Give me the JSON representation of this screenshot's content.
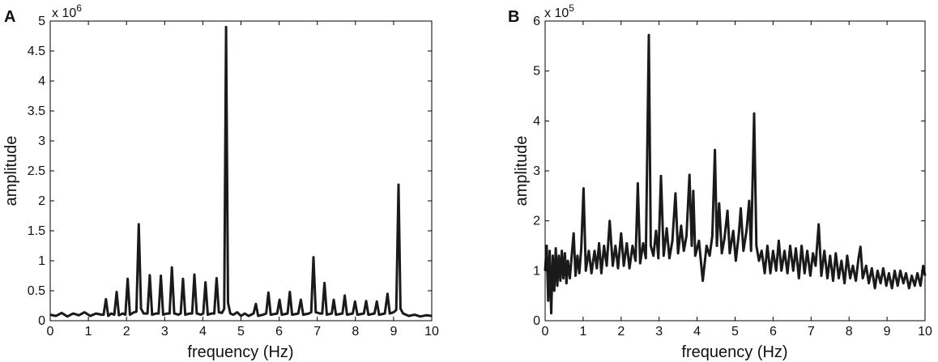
{
  "chart_data": [
    {
      "panel_label": "A",
      "type": "line",
      "xlabel": "frequency (Hz)",
      "ylabel": "amplitude",
      "multiplier_base": "x 10",
      "multiplier_exp": "6",
      "xlim": [
        0,
        10
      ],
      "ylim": [
        0,
        5
      ],
      "xticks": [
        "0",
        "1",
        "2",
        "3",
        "4",
        "5",
        "6",
        "7",
        "8",
        "9",
        "10"
      ],
      "yticks": [
        "0",
        "0.5",
        "1",
        "1.5",
        "2",
        "2.5",
        "3",
        "3.5",
        "4",
        "4.5",
        "5"
      ],
      "grid": false,
      "line_color": "#1a1a1a",
      "series": [
        {
          "values": [
            [
              0.0,
              0.1
            ],
            [
              0.15,
              0.08
            ],
            [
              0.3,
              0.13
            ],
            [
              0.45,
              0.07
            ],
            [
              0.6,
              0.12
            ],
            [
              0.75,
              0.09
            ],
            [
              0.9,
              0.14
            ],
            [
              1.05,
              0.08
            ],
            [
              1.2,
              0.12
            ],
            [
              1.35,
              0.1
            ],
            [
              1.4,
              0.1
            ],
            [
              1.46,
              0.36
            ],
            [
              1.52,
              0.08
            ],
            [
              1.6,
              0.12
            ],
            [
              1.68,
              0.1
            ],
            [
              1.74,
              0.48
            ],
            [
              1.8,
              0.09
            ],
            [
              1.9,
              0.12
            ],
            [
              1.97,
              0.1
            ],
            [
              2.03,
              0.7
            ],
            [
              2.09,
              0.1
            ],
            [
              2.2,
              0.14
            ],
            [
              2.26,
              0.15
            ],
            [
              2.32,
              1.61
            ],
            [
              2.38,
              0.2
            ],
            [
              2.45,
              0.12
            ],
            [
              2.55,
              0.12
            ],
            [
              2.61,
              0.76
            ],
            [
              2.67,
              0.1
            ],
            [
              2.78,
              0.12
            ],
            [
              2.84,
              0.12
            ],
            [
              2.9,
              0.75
            ],
            [
              2.96,
              0.1
            ],
            [
              3.07,
              0.12
            ],
            [
              3.13,
              0.12
            ],
            [
              3.19,
              0.89
            ],
            [
              3.25,
              0.12
            ],
            [
              3.36,
              0.1
            ],
            [
              3.42,
              0.12
            ],
            [
              3.48,
              0.7
            ],
            [
              3.54,
              0.1
            ],
            [
              3.66,
              0.12
            ],
            [
              3.72,
              0.12
            ],
            [
              3.78,
              0.77
            ],
            [
              3.84,
              0.12
            ],
            [
              3.95,
              0.1
            ],
            [
              4.01,
              0.12
            ],
            [
              4.07,
              0.64
            ],
            [
              4.13,
              0.1
            ],
            [
              4.23,
              0.12
            ],
            [
              4.3,
              0.12
            ],
            [
              4.36,
              0.71
            ],
            [
              4.42,
              0.14
            ],
            [
              4.5,
              0.13
            ],
            [
              4.56,
              0.2
            ],
            [
              4.61,
              4.9
            ],
            [
              4.66,
              0.3
            ],
            [
              4.72,
              0.12
            ],
            [
              4.8,
              0.1
            ],
            [
              4.9,
              0.14
            ],
            [
              5.0,
              0.08
            ],
            [
              5.1,
              0.12
            ],
            [
              5.2,
              0.08
            ],
            [
              5.33,
              0.12
            ],
            [
              5.39,
              0.28
            ],
            [
              5.45,
              0.08
            ],
            [
              5.58,
              0.1
            ],
            [
              5.66,
              0.12
            ],
            [
              5.72,
              0.47
            ],
            [
              5.78,
              0.1
            ],
            [
              5.95,
              0.12
            ],
            [
              6.01,
              0.35
            ],
            [
              6.07,
              0.1
            ],
            [
              6.22,
              0.12
            ],
            [
              6.28,
              0.48
            ],
            [
              6.34,
              0.1
            ],
            [
              6.5,
              0.12
            ],
            [
              6.57,
              0.35
            ],
            [
              6.63,
              0.1
            ],
            [
              6.78,
              0.12
            ],
            [
              6.84,
              0.14
            ],
            [
              6.9,
              1.06
            ],
            [
              6.96,
              0.14
            ],
            [
              7.07,
              0.12
            ],
            [
              7.13,
              0.12
            ],
            [
              7.19,
              0.63
            ],
            [
              7.25,
              0.1
            ],
            [
              7.38,
              0.12
            ],
            [
              7.43,
              0.35
            ],
            [
              7.49,
              0.1
            ],
            [
              7.66,
              0.12
            ],
            [
              7.72,
              0.42
            ],
            [
              7.78,
              0.1
            ],
            [
              7.93,
              0.12
            ],
            [
              7.99,
              0.32
            ],
            [
              8.05,
              0.1
            ],
            [
              8.22,
              0.12
            ],
            [
              8.28,
              0.33
            ],
            [
              8.34,
              0.1
            ],
            [
              8.5,
              0.12
            ],
            [
              8.56,
              0.32
            ],
            [
              8.62,
              0.1
            ],
            [
              8.77,
              0.12
            ],
            [
              8.84,
              0.45
            ],
            [
              8.9,
              0.12
            ],
            [
              9.0,
              0.14
            ],
            [
              9.07,
              0.18
            ],
            [
              9.13,
              2.27
            ],
            [
              9.18,
              0.2
            ],
            [
              9.25,
              0.12
            ],
            [
              9.4,
              0.08
            ],
            [
              9.55,
              0.1
            ],
            [
              9.7,
              0.07
            ],
            [
              9.85,
              0.09
            ],
            [
              10.0,
              0.08
            ]
          ]
        }
      ]
    },
    {
      "panel_label": "B",
      "type": "line",
      "xlabel": "frequency (Hz)",
      "ylabel": "amplitude",
      "multiplier_base": "x 10",
      "multiplier_exp": "5",
      "xlim": [
        0,
        10
      ],
      "ylim": [
        0,
        6
      ],
      "xticks": [
        "0",
        "1",
        "2",
        "3",
        "4",
        "5",
        "6",
        "7",
        "8",
        "9",
        "10"
      ],
      "yticks": [
        "0",
        "1",
        "2",
        "3",
        "4",
        "5",
        "6"
      ],
      "grid": false,
      "line_color": "#1a1a1a",
      "series": [
        {
          "values": [
            [
              0.0,
              1.0
            ],
            [
              0.04,
              1.5
            ],
            [
              0.08,
              0.4
            ],
            [
              0.12,
              1.4
            ],
            [
              0.16,
              0.15
            ],
            [
              0.2,
              1.3
            ],
            [
              0.24,
              0.6
            ],
            [
              0.28,
              1.45
            ],
            [
              0.32,
              0.7
            ],
            [
              0.36,
              1.3
            ],
            [
              0.4,
              0.8
            ],
            [
              0.44,
              1.4
            ],
            [
              0.48,
              0.85
            ],
            [
              0.52,
              1.35
            ],
            [
              0.56,
              0.75
            ],
            [
              0.6,
              1.2
            ],
            [
              0.65,
              0.85
            ],
            [
              0.7,
              1.3
            ],
            [
              0.75,
              1.75
            ],
            [
              0.8,
              0.9
            ],
            [
              0.85,
              1.3
            ],
            [
              0.9,
              0.95
            ],
            [
              0.95,
              1.45
            ],
            [
              1.01,
              2.65
            ],
            [
              1.07,
              1.0
            ],
            [
              1.15,
              1.4
            ],
            [
              1.22,
              0.95
            ],
            [
              1.3,
              1.4
            ],
            [
              1.36,
              1.05
            ],
            [
              1.42,
              1.55
            ],
            [
              1.48,
              0.95
            ],
            [
              1.55,
              1.5
            ],
            [
              1.62,
              1.1
            ],
            [
              1.7,
              2.0
            ],
            [
              1.78,
              1.1
            ],
            [
              1.85,
              1.5
            ],
            [
              1.92,
              1.05
            ],
            [
              2.0,
              1.75
            ],
            [
              2.07,
              1.1
            ],
            [
              2.15,
              1.55
            ],
            [
              2.22,
              1.05
            ],
            [
              2.3,
              1.5
            ],
            [
              2.38,
              1.2
            ],
            [
              2.44,
              2.75
            ],
            [
              2.5,
              1.15
            ],
            [
              2.58,
              1.55
            ],
            [
              2.65,
              1.25
            ],
            [
              2.73,
              5.72
            ],
            [
              2.78,
              1.5
            ],
            [
              2.85,
              1.3
            ],
            [
              2.92,
              1.8
            ],
            [
              2.98,
              1.25
            ],
            [
              3.05,
              2.9
            ],
            [
              3.12,
              1.3
            ],
            [
              3.2,
              1.85
            ],
            [
              3.27,
              1.25
            ],
            [
              3.35,
              1.6
            ],
            [
              3.43,
              2.55
            ],
            [
              3.5,
              1.35
            ],
            [
              3.58,
              1.9
            ],
            [
              3.65,
              1.4
            ],
            [
              3.72,
              1.7
            ],
            [
              3.8,
              2.92
            ],
            [
              3.86,
              1.5
            ],
            [
              3.9,
              2.6
            ],
            [
              3.95,
              1.3
            ],
            [
              4.05,
              1.6
            ],
            [
              4.15,
              0.8
            ],
            [
              4.25,
              1.5
            ],
            [
              4.33,
              1.3
            ],
            [
              4.4,
              1.7
            ],
            [
              4.47,
              3.42
            ],
            [
              4.52,
              1.5
            ],
            [
              4.58,
              2.35
            ],
            [
              4.65,
              1.35
            ],
            [
              4.72,
              1.65
            ],
            [
              4.8,
              2.2
            ],
            [
              4.86,
              1.35
            ],
            [
              4.95,
              1.8
            ],
            [
              5.02,
              1.2
            ],
            [
              5.1,
              1.75
            ],
            [
              5.15,
              2.25
            ],
            [
              5.22,
              1.4
            ],
            [
              5.3,
              1.8
            ],
            [
              5.37,
              2.4
            ],
            [
              5.42,
              1.4
            ],
            [
              5.5,
              4.15
            ],
            [
              5.56,
              1.5
            ],
            [
              5.63,
              1.2
            ],
            [
              5.7,
              1.4
            ],
            [
              5.78,
              0.95
            ],
            [
              5.85,
              1.5
            ],
            [
              5.93,
              0.95
            ],
            [
              6.0,
              1.4
            ],
            [
              6.08,
              1.0
            ],
            [
              6.15,
              1.6
            ],
            [
              6.22,
              1.0
            ],
            [
              6.3,
              1.4
            ],
            [
              6.38,
              0.95
            ],
            [
              6.45,
              1.5
            ],
            [
              6.53,
              1.0
            ],
            [
              6.6,
              1.45
            ],
            [
              6.68,
              0.85
            ],
            [
              6.75,
              1.5
            ],
            [
              6.83,
              0.95
            ],
            [
              6.9,
              1.4
            ],
            [
              6.98,
              0.9
            ],
            [
              7.05,
              1.35
            ],
            [
              7.12,
              1.1
            ],
            [
              7.2,
              1.93
            ],
            [
              7.27,
              0.9
            ],
            [
              7.35,
              1.4
            ],
            [
              7.43,
              0.85
            ],
            [
              7.5,
              1.3
            ],
            [
              7.58,
              0.8
            ],
            [
              7.65,
              1.35
            ],
            [
              7.73,
              0.85
            ],
            [
              7.8,
              1.2
            ],
            [
              7.88,
              0.75
            ],
            [
              7.95,
              1.3
            ],
            [
              8.03,
              0.85
            ],
            [
              8.1,
              1.1
            ],
            [
              8.18,
              0.8
            ],
            [
              8.25,
              1.25
            ],
            [
              8.3,
              1.48
            ],
            [
              8.36,
              0.85
            ],
            [
              8.45,
              1.1
            ],
            [
              8.52,
              0.75
            ],
            [
              8.6,
              1.05
            ],
            [
              8.68,
              0.65
            ],
            [
              8.75,
              1.0
            ],
            [
              8.83,
              0.75
            ],
            [
              8.9,
              1.05
            ],
            [
              8.98,
              0.7
            ],
            [
              9.05,
              0.95
            ],
            [
              9.13,
              0.65
            ],
            [
              9.2,
              1.0
            ],
            [
              9.28,
              0.7
            ],
            [
              9.35,
              1.0
            ],
            [
              9.43,
              0.75
            ],
            [
              9.5,
              0.95
            ],
            [
              9.58,
              0.65
            ],
            [
              9.65,
              0.9
            ],
            [
              9.73,
              0.7
            ],
            [
              9.8,
              0.95
            ],
            [
              9.88,
              0.7
            ],
            [
              9.95,
              1.1
            ],
            [
              10.0,
              0.9
            ]
          ]
        }
      ]
    }
  ]
}
